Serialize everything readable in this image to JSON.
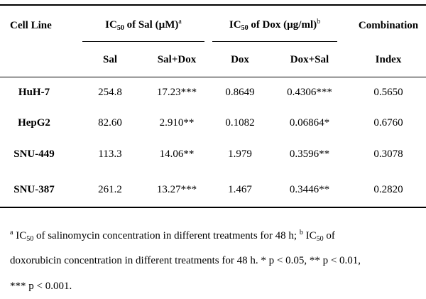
{
  "table": {
    "headers": {
      "cell_line": "Cell Line",
      "ic50_sal": {
        "prefix": "IC",
        "sub": "50",
        "rest": " of Sal (µM)",
        "sup": "a"
      },
      "ic50_dox": {
        "prefix": "IC",
        "sub": "50",
        "rest": " of Dox (µg/ml)",
        "sup": "b"
      },
      "combination": "Combination",
      "index": "Index",
      "sub_sal": "Sal",
      "sub_sal_dox": "Sal+Dox",
      "sub_dox": "Dox",
      "sub_dox_sal": "Dox+Sal"
    },
    "rows": [
      {
        "cell_line": "HuH-7",
        "sal": "254.8",
        "sal_dox": "17.23***",
        "dox": "0.8649",
        "dox_sal": "0.4306***",
        "ci": "0.5650"
      },
      {
        "cell_line": "HepG2",
        "sal": "82.60",
        "sal_dox": "2.910**",
        "dox": "0.1082",
        "dox_sal": "0.06864*",
        "ci": "0.6760"
      },
      {
        "cell_line": "SNU-449",
        "sal": "113.3",
        "sal_dox": "14.06**",
        "dox": "1.979",
        "dox_sal": "0.3596**",
        "ci": "0.3078"
      },
      {
        "cell_line": "SNU-387",
        "sal": "261.2",
        "sal_dox": "13.27***",
        "dox": "1.467",
        "dox_sal": "0.3446**",
        "ci": "0.2820"
      }
    ]
  },
  "footnote": {
    "line1": {
      "sup_a": "a",
      "ic": "IC",
      "sub1": "50",
      "text1": " of salinomycin concentration in different treatments for 48 h; ",
      "sup_b": "b",
      "ic2": "IC",
      "sub2": "50",
      "text2": " of"
    },
    "line2": "doxorubicin concentration in different treatments for 48 h. * p < 0.05, ** p < 0.01,",
    "line3": "*** p < 0.001."
  }
}
